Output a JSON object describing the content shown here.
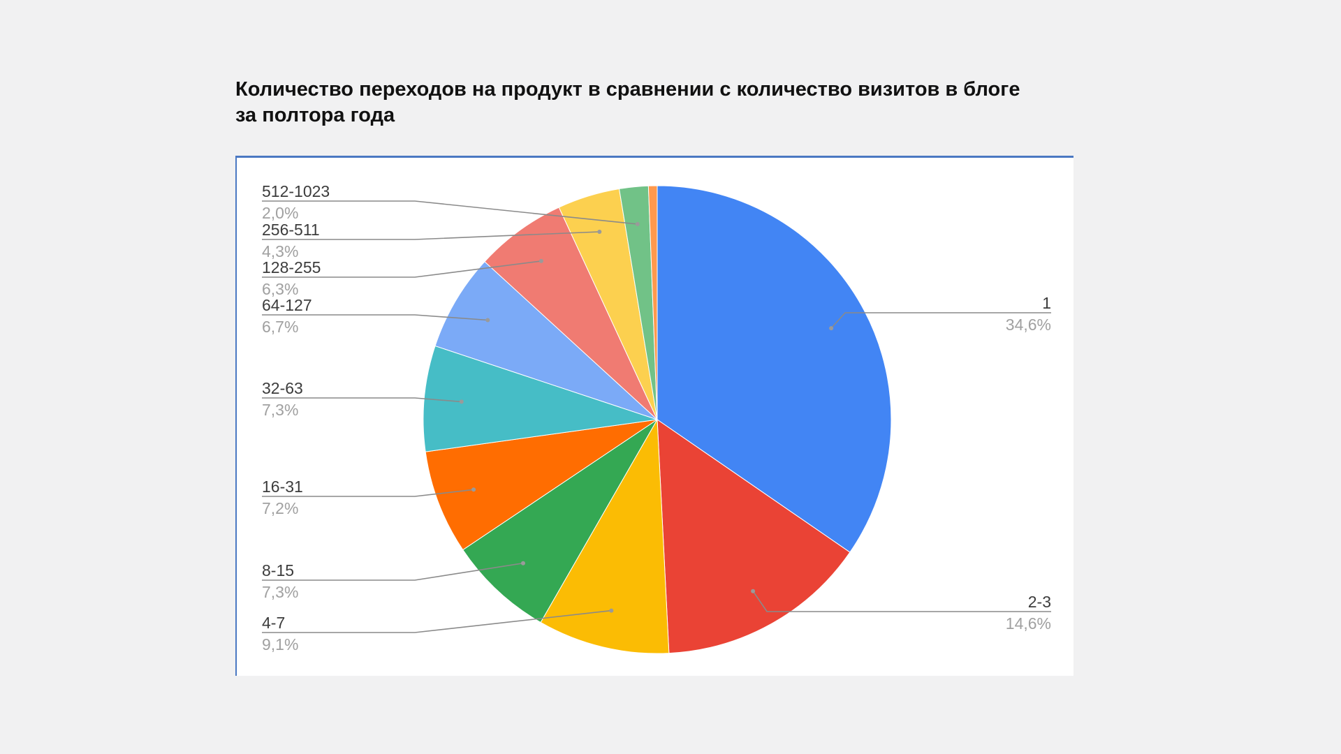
{
  "title": "Количество переходов на продукт в сравнении с количество визитов в блоге за полтора года",
  "chart_data": {
    "type": "pie",
    "title": "Количество переходов на продукт в сравнении с количество визитов в блоге за полтора года",
    "start": "12 o'clock, clockwise",
    "legend": "labeled slices (leader lines)",
    "slices": [
      {
        "name": "1",
        "label": "34,6%",
        "value": 34.6,
        "color": "#4285f4"
      },
      {
        "name": "2-3",
        "label": "14,6%",
        "value": 14.6,
        "color": "#ea4335"
      },
      {
        "name": "4-7",
        "label": "9,1%",
        "value": 9.1,
        "color": "#fbbc04"
      },
      {
        "name": "8-15",
        "label": "7,3%",
        "value": 7.3,
        "color": "#34a853"
      },
      {
        "name": "16-31",
        "label": "7,2%",
        "value": 7.2,
        "color": "#ff6d01"
      },
      {
        "name": "32-63",
        "label": "7,3%",
        "value": 7.3,
        "color": "#46bdc6"
      },
      {
        "name": "64-127",
        "label": "6,7%",
        "value": 6.7,
        "color": "#7baaf7"
      },
      {
        "name": "128-255",
        "label": "6,3%",
        "value": 6.3,
        "color": "#f07b72"
      },
      {
        "name": "256-511",
        "label": "4,3%",
        "value": 4.3,
        "color": "#fcd04f"
      },
      {
        "name": "512-1023",
        "label": "2,0%",
        "value": 2.0,
        "color": "#71c287"
      },
      {
        "name": "",
        "label": "",
        "value": 0.6,
        "color": "#ff994d"
      }
    ]
  }
}
